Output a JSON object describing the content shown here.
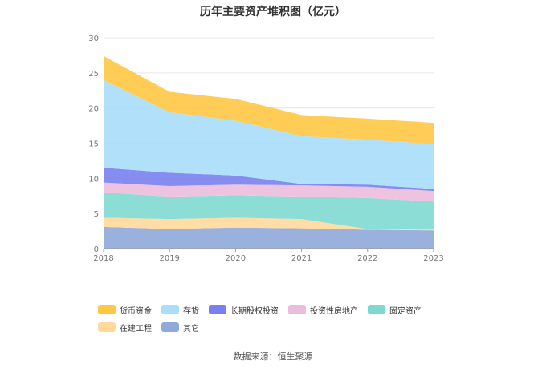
{
  "chart_data": {
    "type": "area",
    "title": "历年主要资产堆积图（亿元）",
    "categories": [
      "2018",
      "2019",
      "2020",
      "2021",
      "2022",
      "2023"
    ],
    "yticks": [
      "0",
      "5",
      "10",
      "15",
      "20",
      "25",
      "30"
    ],
    "ylim": [
      0,
      30
    ],
    "grid": true,
    "legend_position": "bottom",
    "series": [
      {
        "name": "其它",
        "color": "#8fa9d9",
        "values": [
          3.1,
          2.8,
          3.0,
          2.9,
          2.7,
          2.6
        ]
      },
      {
        "name": "在建工程",
        "color": "#ffd99a",
        "values": [
          1.3,
          1.4,
          1.4,
          1.3,
          0.1,
          0.1
        ]
      },
      {
        "name": "固定资产",
        "color": "#7fd9d2",
        "values": [
          3.6,
          3.2,
          3.2,
          3.2,
          4.4,
          4.0
        ]
      },
      {
        "name": "投资性房地产",
        "color": "#ecbcdb",
        "values": [
          1.4,
          1.5,
          1.5,
          1.6,
          1.6,
          1.5
        ]
      },
      {
        "name": "长期股权投资",
        "color": "#7a7ff0",
        "values": [
          2.1,
          1.9,
          1.3,
          0.2,
          0.3,
          0.3
        ]
      },
      {
        "name": "存货",
        "color": "#a8def9",
        "values": [
          12.5,
          8.6,
          7.8,
          6.8,
          6.4,
          6.4
        ]
      },
      {
        "name": "货币资金",
        "color": "#ffc844",
        "values": [
          3.4,
          2.9,
          3.1,
          3.0,
          3.0,
          3.0
        ]
      }
    ],
    "legend_order": [
      "货币资金",
      "存货",
      "长期股权投资",
      "投资性房地产",
      "固定资产",
      "在建工程",
      "其它"
    ]
  },
  "source": "数据来源：恒生聚源"
}
